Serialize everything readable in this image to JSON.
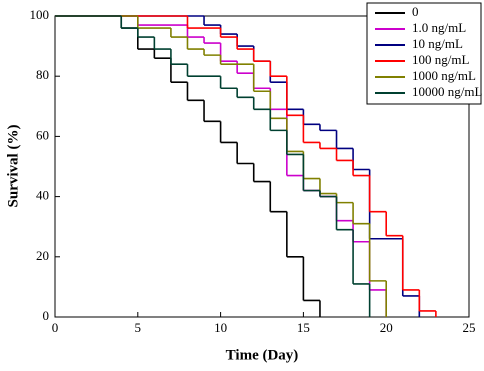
{
  "chart_data": {
    "type": "step",
    "xlabel": "Time (Day)",
    "ylabel": "Survival (%)",
    "xlim": [
      0,
      25
    ],
    "xticks": [
      0,
      5,
      10,
      15,
      20,
      25
    ],
    "ylim": [
      0,
      100
    ],
    "yticks": [
      0,
      20,
      40,
      60,
      80,
      100
    ],
    "legend": "top-right",
    "series": [
      {
        "name": "0",
        "color": "#000000",
        "x": [
          0,
          4,
          5,
          6,
          7,
          8,
          9,
          10,
          11,
          12,
          13,
          14,
          15,
          16
        ],
        "values": [
          100,
          96,
          89,
          86,
          78,
          72,
          65,
          58,
          51,
          45,
          35,
          20,
          5.5,
          0
        ]
      },
      {
        "name": "1.0 ng/mL",
        "color": "#cc00cc",
        "x": [
          0,
          5,
          8,
          9,
          10,
          11,
          12,
          13,
          14,
          15,
          16,
          17,
          18,
          19,
          20
        ],
        "values": [
          100,
          97,
          93,
          91,
          85,
          81,
          76,
          69,
          47,
          42,
          40,
          32,
          25,
          9,
          0
        ]
      },
      {
        "name": "10 ng/mL",
        "color": "#000080",
        "x": [
          0,
          9,
          10,
          11,
          12,
          13,
          14,
          15,
          16,
          17,
          18,
          19,
          21,
          22
        ],
        "values": [
          100,
          97,
          94,
          90,
          85,
          78,
          69,
          64,
          62,
          56,
          49,
          26,
          7,
          0
        ]
      },
      {
        "name": "100 ng/mL",
        "color": "#ff0000",
        "x": [
          0,
          8,
          10,
          11,
          12,
          13,
          14,
          15,
          16,
          17,
          18,
          19,
          20,
          21,
          22,
          23
        ],
        "values": [
          100,
          96,
          93,
          89,
          85,
          80,
          67,
          58,
          56,
          52,
          47,
          35,
          27,
          9,
          2,
          0
        ]
      },
      {
        "name": "1000 ng/mL",
        "color": "#808000",
        "x": [
          0,
          5,
          7,
          8,
          9,
          10,
          12,
          13,
          14,
          15,
          16,
          17,
          18,
          19,
          20
        ],
        "values": [
          100,
          96,
          93,
          89,
          87,
          84,
          75,
          66,
          55,
          46,
          41,
          38,
          31,
          12,
          0
        ]
      },
      {
        "name": "10000 ng/mL",
        "color": "#004030",
        "x": [
          0,
          4,
          5,
          6,
          7,
          8,
          10,
          11,
          12,
          13,
          14,
          15,
          16,
          17,
          18,
          19
        ],
        "values": [
          100,
          96,
          93,
          89,
          84,
          80,
          76,
          73,
          69,
          62,
          54,
          42,
          40,
          29,
          11,
          0
        ]
      }
    ]
  }
}
